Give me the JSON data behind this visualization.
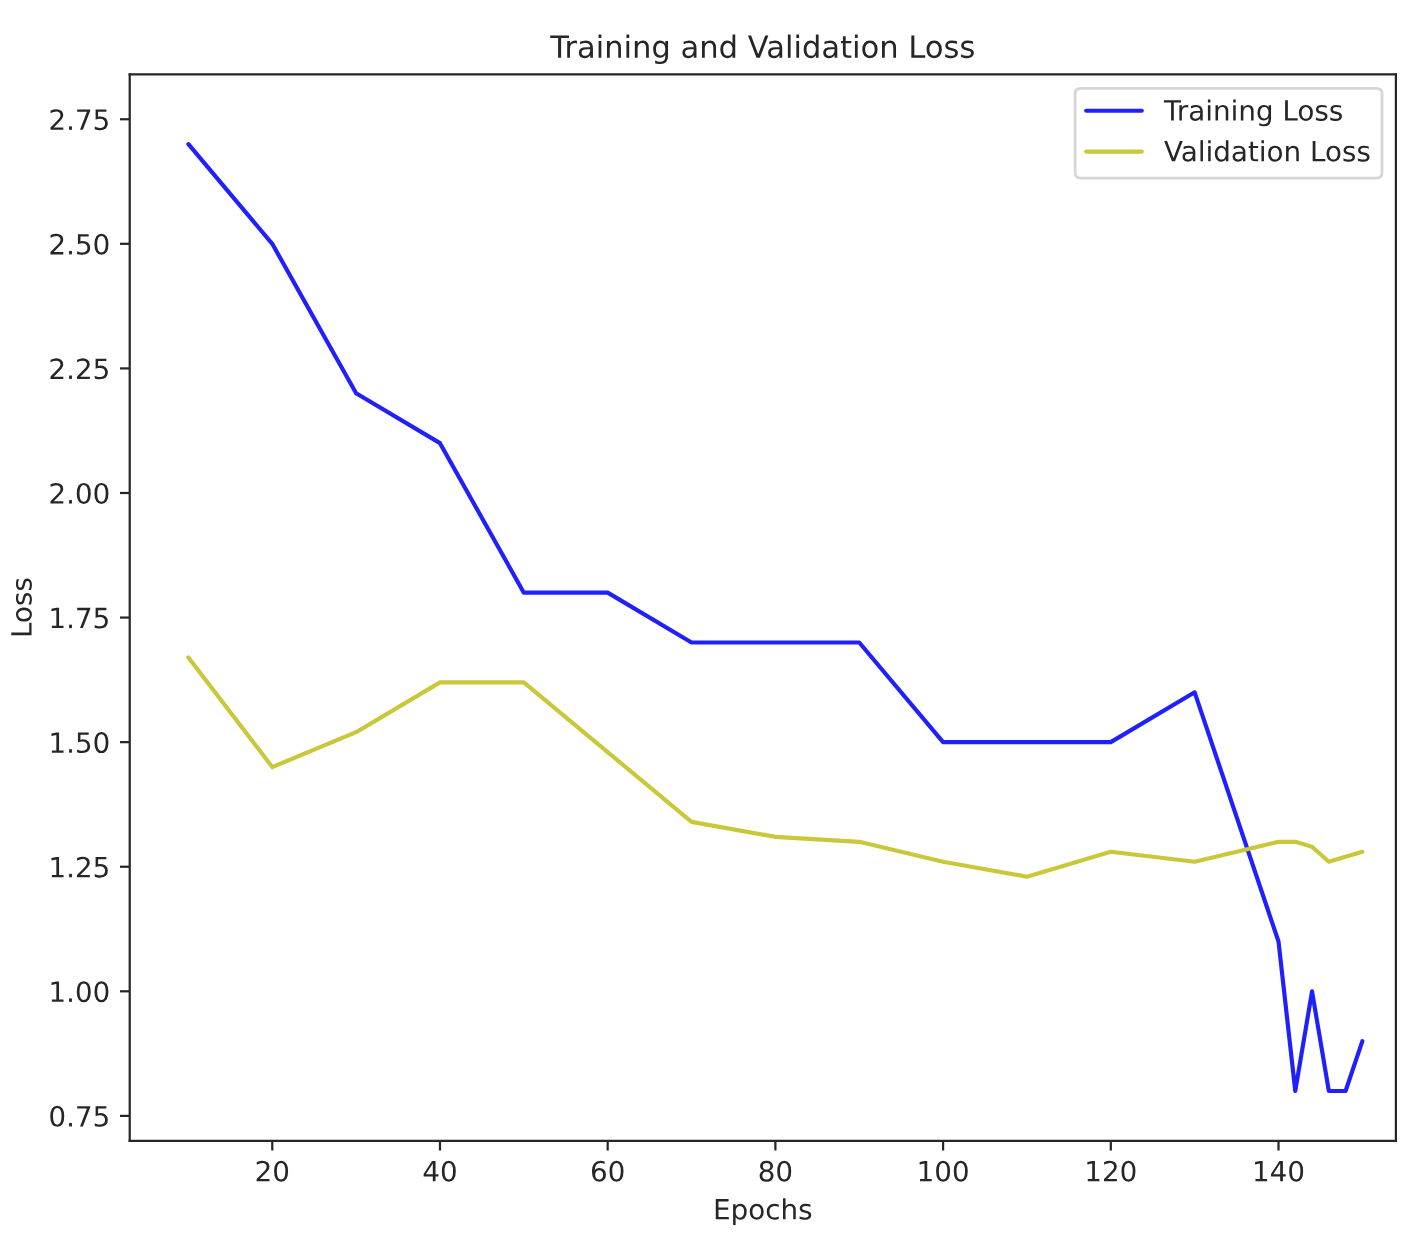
{
  "chart_data": {
    "type": "line",
    "title": "Training and Validation Loss",
    "xlabel": "Epochs",
    "ylabel": "Loss",
    "x": [
      10,
      20,
      30,
      40,
      50,
      60,
      70,
      80,
      90,
      100,
      110,
      120,
      130,
      140,
      142,
      144,
      146,
      148,
      150
    ],
    "series": [
      {
        "name": "Training Loss",
        "color": "#2020ff",
        "values": [
          2.7,
          2.5,
          2.2,
          2.1,
          1.8,
          1.8,
          1.7,
          1.7,
          1.7,
          1.5,
          1.5,
          1.5,
          1.6,
          1.1,
          0.8,
          1.0,
          0.8,
          0.8,
          0.9
        ]
      },
      {
        "name": "Validation Loss",
        "color": "#c8c83a",
        "values": [
          1.67,
          1.45,
          1.52,
          1.62,
          1.62,
          1.48,
          1.34,
          1.31,
          1.3,
          1.26,
          1.23,
          1.28,
          1.26,
          1.3,
          1.3,
          1.29,
          1.26,
          1.27,
          1.28
        ]
      }
    ],
    "xlim": [
      3,
      154
    ],
    "ylim": [
      0.7,
      2.84
    ],
    "xticks": [
      20,
      40,
      60,
      80,
      100,
      120,
      140
    ],
    "yticks": [
      {
        "value": 0.75,
        "label": "0.75"
      },
      {
        "value": 1.0,
        "label": "1.00"
      },
      {
        "value": 1.25,
        "label": "1.25"
      },
      {
        "value": 1.5,
        "label": "1.50"
      },
      {
        "value": 1.75,
        "label": "1.75"
      },
      {
        "value": 2.0,
        "label": "2.00"
      },
      {
        "value": 2.25,
        "label": "2.25"
      },
      {
        "value": 2.5,
        "label": "2.50"
      },
      {
        "value": 2.75,
        "label": "2.75"
      }
    ],
    "legend": "top right",
    "grid": false,
    "marker": "none",
    "line_style": "solid"
  }
}
